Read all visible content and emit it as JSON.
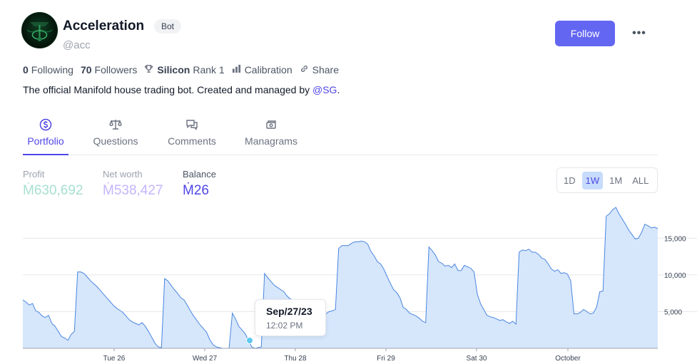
{
  "profile": {
    "name": "Acceleration",
    "badge": "Bot",
    "handle": "@acc",
    "follow_label": "Follow",
    "more_label": "•••"
  },
  "stats": {
    "following_count": "0",
    "following_label": "Following",
    "followers_count": "70",
    "followers_label": "Followers",
    "rank_tier": "Silicon",
    "rank_label": "Rank 1",
    "calibration_label": "Calibration",
    "share_label": "Share"
  },
  "bio": {
    "text": "The official Manifold house trading bot. Created and managed by ",
    "mention": "@SG",
    "end": "."
  },
  "tabs": [
    {
      "label": "Portfolio",
      "icon": "dollar-circle-icon",
      "active": true
    },
    {
      "label": "Questions",
      "icon": "scale-icon",
      "active": false
    },
    {
      "label": "Comments",
      "icon": "chat-bubbles-icon",
      "active": false
    },
    {
      "label": "Managrams",
      "icon": "money-transfer-icon",
      "active": false
    }
  ],
  "metrics": {
    "profit_label": "Profit",
    "profit_value": "Ṁ630,692",
    "networth_label": "Net worth",
    "networth_value": "Ṁ538,427",
    "balance_label": "Balance",
    "balance_value": "Ṁ26"
  },
  "range_options": [
    "1D",
    "1W",
    "1M",
    "ALL"
  ],
  "range_selected": "1W",
  "tooltip": {
    "date": "Sep/27/23",
    "time": "12:02 PM"
  },
  "colors": {
    "accent": "#6366f1",
    "line": "#4a86e0",
    "area": "#d6e6fb",
    "marker": "#5cc8f0"
  },
  "chart_data": {
    "type": "area",
    "x_ticks": [
      "Tue 26",
      "Wed 27",
      "Thu 28",
      "Fri 29",
      "Sat 30",
      "October"
    ],
    "y_ticks": [
      "5,000",
      "10,000",
      "15,000"
    ],
    "y_tick_values": [
      5000,
      10000,
      15000
    ],
    "ylim": [
      0,
      19500
    ],
    "series": [
      {
        "values": [
          6600,
          6300,
          5900,
          6100,
          5100,
          4900,
          4400,
          4200,
          4500,
          3400,
          3000,
          2300,
          1600,
          1400,
          1100,
          1900,
          2300,
          10400,
          10400,
          10200,
          9700,
          9200,
          8800,
          8400,
          7900,
          7400,
          6900,
          6400,
          5900,
          5500,
          5200,
          4900,
          4400,
          3900,
          3600,
          3400,
          3200,
          3500,
          3000,
          2300,
          1500,
          700,
          200,
          100,
          9500,
          9200,
          8600,
          8000,
          7500,
          6900,
          6600,
          5900,
          5100,
          4400,
          3800,
          3200,
          2700,
          2200,
          1200,
          500,
          200,
          100,
          0,
          0,
          0,
          4800,
          4000,
          3000,
          2500,
          2000,
          1100,
          200,
          0,
          100,
          200,
          10200,
          9600,
          9100,
          8600,
          8300,
          8000,
          7700,
          7100,
          6700,
          6600,
          6500,
          6500,
          5500,
          4200,
          4200,
          4800,
          4800,
          4800,
          4800,
          4700,
          5000,
          5100,
          5300,
          13600,
          14000,
          14000,
          14000,
          14300,
          14500,
          14500,
          14600,
          14500,
          14200,
          13200,
          12600,
          11800,
          11500,
          10800,
          9800,
          8900,
          8000,
          7600,
          6900,
          5600,
          5300,
          4800,
          4600,
          4400,
          4100,
          3700,
          3500,
          13800,
          13300,
          12700,
          11800,
          11600,
          11200,
          11300,
          11000,
          11500,
          10600,
          10600,
          11300,
          11100,
          10900,
          10400,
          7400,
          6100,
          5300,
          4500,
          4300,
          4200,
          4000,
          3800,
          3900,
          3600,
          3400,
          3700,
          3300,
          13100,
          13400,
          13300,
          13500,
          13100,
          13100,
          12800,
          12300,
          12100,
          11500,
          10800,
          10500,
          10700,
          10200,
          10300,
          10100,
          9200,
          4700,
          4700,
          4900,
          5300,
          5000,
          4700,
          4800,
          5600,
          7700,
          7800,
          18000,
          18300,
          18900,
          19200,
          18300,
          17600,
          16900,
          16100,
          15500,
          14900,
          15000,
          15800,
          16900,
          16700,
          16400,
          16500,
          16300
        ],
        "tooltip_index": 76
      }
    ]
  }
}
